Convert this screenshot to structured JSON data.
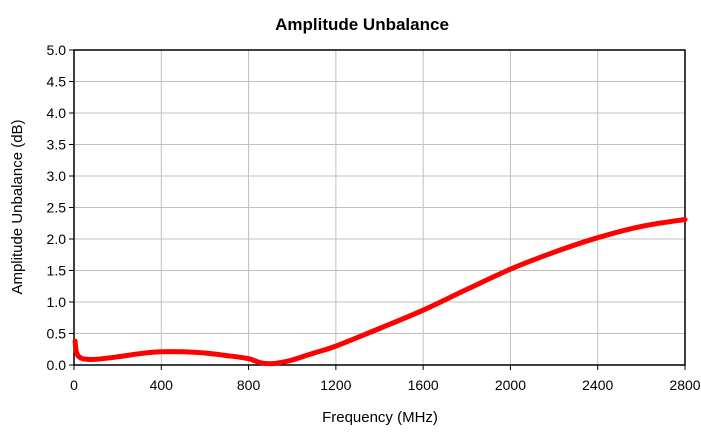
{
  "chart_data": {
    "type": "line",
    "title": "Amplitude Unbalance",
    "xlabel": "Frequency (MHz)",
    "ylabel": "Amplitude Unbalance (dB)",
    "xlim": [
      0,
      2800
    ],
    "ylim": [
      0,
      5
    ],
    "x_ticks": [
      0,
      400,
      800,
      1200,
      1600,
      2000,
      2400,
      2800
    ],
    "x_tick_labels": [
      "0",
      "400",
      "800",
      "1200",
      "1600",
      "2000",
      "2400",
      "2800"
    ],
    "y_ticks": [
      0,
      0.5,
      1,
      1.5,
      2,
      2.5,
      3,
      3.5,
      4,
      4.5,
      5
    ],
    "y_tick_labels": [
      "0.0",
      "0.5",
      "1.0",
      "1.5",
      "2.0",
      "2.5",
      "3.0",
      "3.5",
      "4.0",
      "4.5",
      "5.0"
    ],
    "grid": true,
    "series": [
      {
        "color": "#ff0000",
        "x": [
          5,
          10,
          20,
          40,
          60,
          100,
          200,
          300,
          400,
          500,
          600,
          700,
          800,
          850,
          900,
          950,
          1000,
          1100,
          1200,
          1400,
          1600,
          1800,
          2000,
          2200,
          2400,
          2600,
          2800
        ],
        "y": [
          0.38,
          0.22,
          0.14,
          0.1,
          0.09,
          0.09,
          0.13,
          0.18,
          0.21,
          0.21,
          0.19,
          0.15,
          0.1,
          0.04,
          0.02,
          0.04,
          0.08,
          0.19,
          0.3,
          0.58,
          0.87,
          1.2,
          1.52,
          1.79,
          2.02,
          2.2,
          2.31
        ]
      }
    ]
  }
}
